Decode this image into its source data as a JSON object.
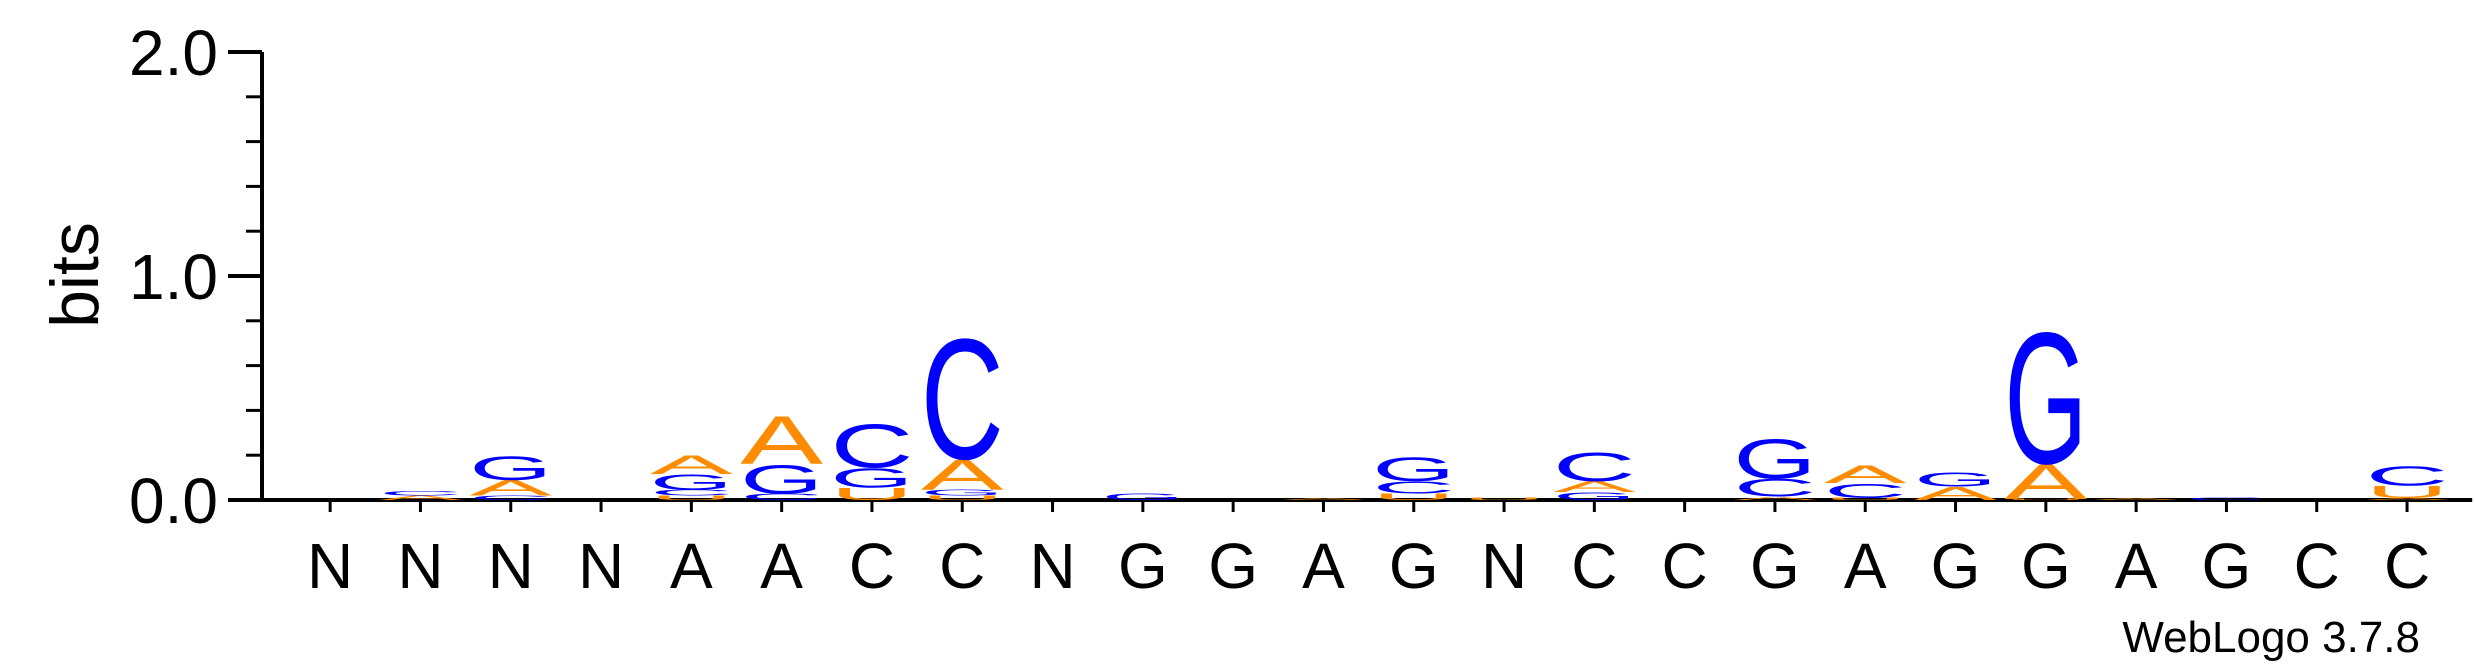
{
  "chart_data": {
    "type": "sequence_logo",
    "ylabel": "bits",
    "ylim": [
      0,
      2.0
    ],
    "yticks": [
      "0.0",
      "1.0",
      "2.0"
    ],
    "colors": {
      "A": "#ff8c00",
      "C": "#0000ff",
      "G": "#0000ff",
      "U": "#ff8c00"
    },
    "positions": [
      {
        "label": "N",
        "stack": []
      },
      {
        "label": "N",
        "stack": [
          {
            "letter": "A",
            "height": 0.02
          },
          {
            "letter": "C",
            "height": 0.02
          }
        ]
      },
      {
        "label": "N",
        "stack": [
          {
            "letter": "C",
            "height": 0.02
          },
          {
            "letter": "A",
            "height": 0.07
          },
          {
            "letter": "G",
            "height": 0.11
          }
        ]
      },
      {
        "label": "N",
        "stack": []
      },
      {
        "label": "A",
        "stack": [
          {
            "letter": "U",
            "height": 0.02
          },
          {
            "letter": "C",
            "height": 0.025
          },
          {
            "letter": "G",
            "height": 0.07
          },
          {
            "letter": "A",
            "height": 0.085
          }
        ]
      },
      {
        "label": "A",
        "stack": [
          {
            "letter": "C",
            "height": 0.03
          },
          {
            "letter": "G",
            "height": 0.13
          },
          {
            "letter": "A",
            "height": 0.22
          }
        ]
      },
      {
        "label": "C",
        "stack": [
          {
            "letter": "U",
            "height": 0.055
          },
          {
            "letter": "G",
            "height": 0.09
          },
          {
            "letter": "C",
            "height": 0.2
          }
        ]
      },
      {
        "label": "C",
        "stack": [
          {
            "letter": "U",
            "height": 0.02
          },
          {
            "letter": "G",
            "height": 0.025
          },
          {
            "letter": "A",
            "height": 0.14
          },
          {
            "letter": "C",
            "height": 0.55
          }
        ]
      },
      {
        "label": "N",
        "stack": []
      },
      {
        "label": "G",
        "stack": [
          {
            "letter": "G",
            "height": 0.03
          }
        ]
      },
      {
        "label": "G",
        "stack": []
      },
      {
        "label": "A",
        "stack": [
          {
            "letter": "A",
            "height": 0.01
          }
        ]
      },
      {
        "label": "G",
        "stack": [
          {
            "letter": "U",
            "height": 0.03
          },
          {
            "letter": "C",
            "height": 0.055
          },
          {
            "letter": "G",
            "height": 0.11
          }
        ]
      },
      {
        "label": "N",
        "stack": [
          {
            "letter": "U",
            "height": 0.01
          }
        ]
      },
      {
        "label": "C",
        "stack": [
          {
            "letter": "G",
            "height": 0.035
          },
          {
            "letter": "A",
            "height": 0.05
          },
          {
            "letter": "C",
            "height": 0.13
          }
        ]
      },
      {
        "label": "C",
        "stack": []
      },
      {
        "label": "G",
        "stack": [
          {
            "letter": "A",
            "height": 0.015
          },
          {
            "letter": "C",
            "height": 0.08
          },
          {
            "letter": "G",
            "height": 0.18
          }
        ]
      },
      {
        "label": "A",
        "stack": [
          {
            "letter": "U",
            "height": 0.01
          },
          {
            "letter": "C",
            "height": 0.065
          },
          {
            "letter": "A",
            "height": 0.08
          }
        ]
      },
      {
        "label": "G",
        "stack": [
          {
            "letter": "A",
            "height": 0.06
          },
          {
            "letter": "G",
            "height": 0.065
          }
        ]
      },
      {
        "label": "G",
        "stack": [
          {
            "letter": "U",
            "height": 0.005
          },
          {
            "letter": "A",
            "height": 0.16
          },
          {
            "letter": "G",
            "height": 0.6
          }
        ]
      },
      {
        "label": "A",
        "stack": [
          {
            "letter": "A",
            "height": 0.01
          }
        ]
      },
      {
        "label": "G",
        "stack": [
          {
            "letter": "C",
            "height": 0.01
          }
        ]
      },
      {
        "label": "C",
        "stack": []
      },
      {
        "label": "C",
        "stack": [
          {
            "letter": "A",
            "height": 0.01
          },
          {
            "letter": "U",
            "height": 0.055
          },
          {
            "letter": "C",
            "height": 0.09
          }
        ]
      }
    ],
    "footer": "WebLogo 3.7.8"
  }
}
